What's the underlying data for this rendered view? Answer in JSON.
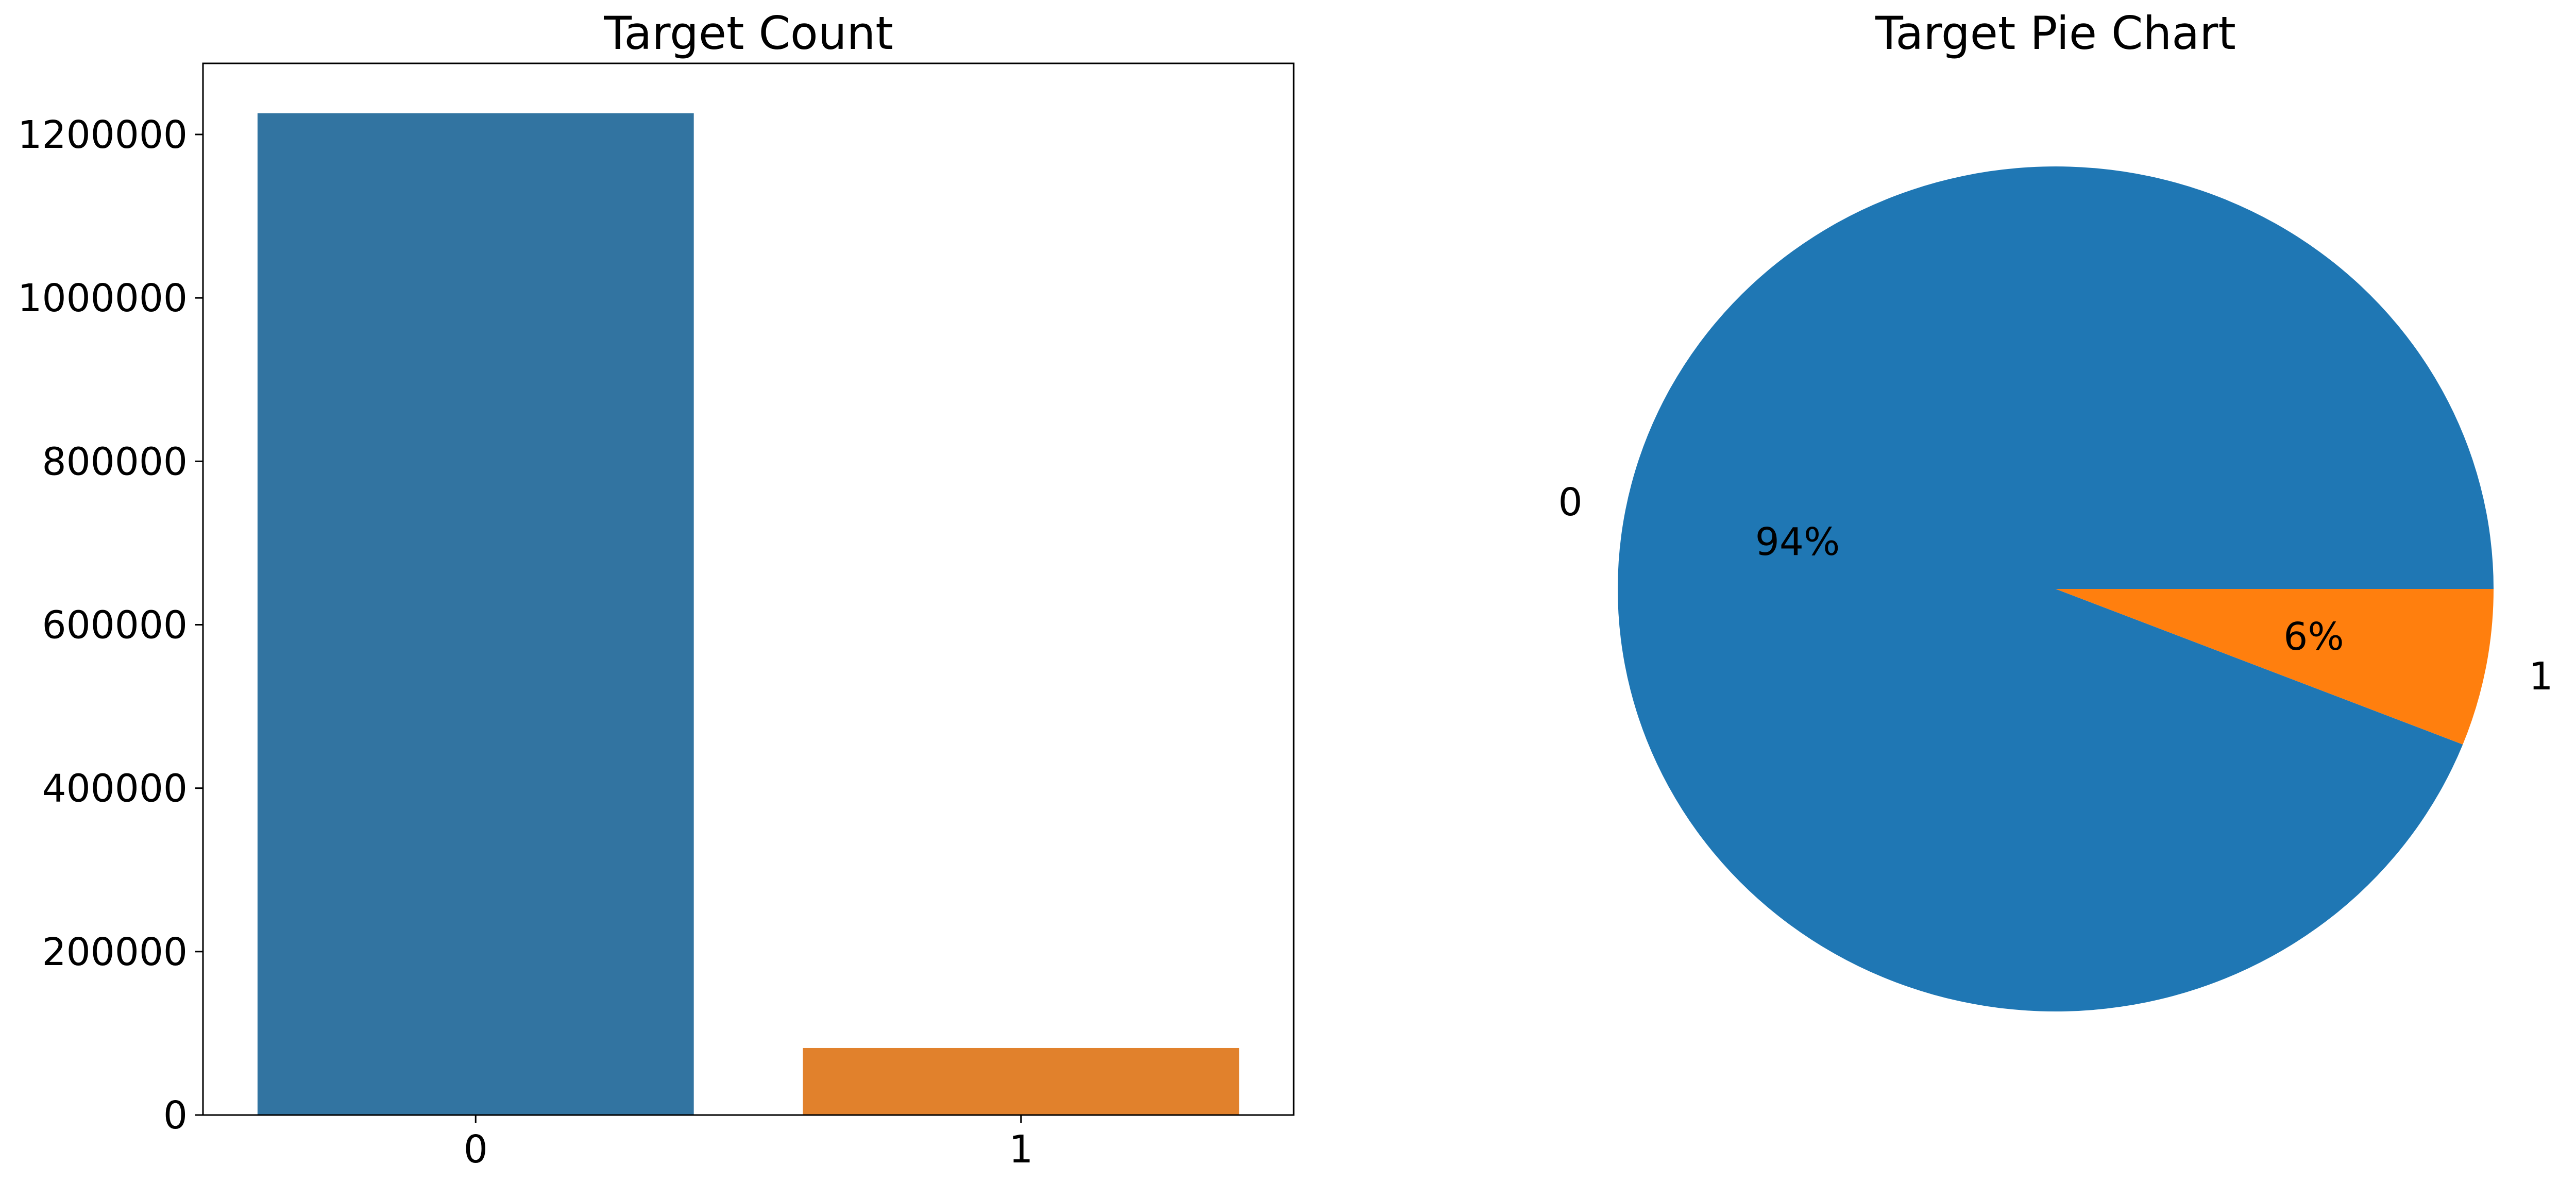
{
  "chart_data": [
    {
      "type": "bar",
      "title": "Target Count",
      "xlabel": "",
      "ylabel": "",
      "categories": [
        "0",
        "1"
      ],
      "values": [
        1226000,
        82000
      ],
      "colors": [
        "#3274a1",
        "#e1812c"
      ],
      "ylim": [
        0,
        1287000
      ],
      "yticks": [
        0,
        200000,
        400000,
        600000,
        800000,
        1000000,
        1200000
      ],
      "ytick_labels": [
        "0",
        "200000",
        "400000",
        "600000",
        "800000",
        "1000000",
        "1200000"
      ],
      "grid": false,
      "legend": "none"
    },
    {
      "type": "pie",
      "title": "Target Pie Chart",
      "labels": [
        "0",
        "1"
      ],
      "values": [
        94,
        6
      ],
      "value_labels": [
        "94%",
        "6%"
      ],
      "colors": [
        "#1f77b4",
        "#ff7f0e"
      ],
      "legend": "none"
    }
  ]
}
